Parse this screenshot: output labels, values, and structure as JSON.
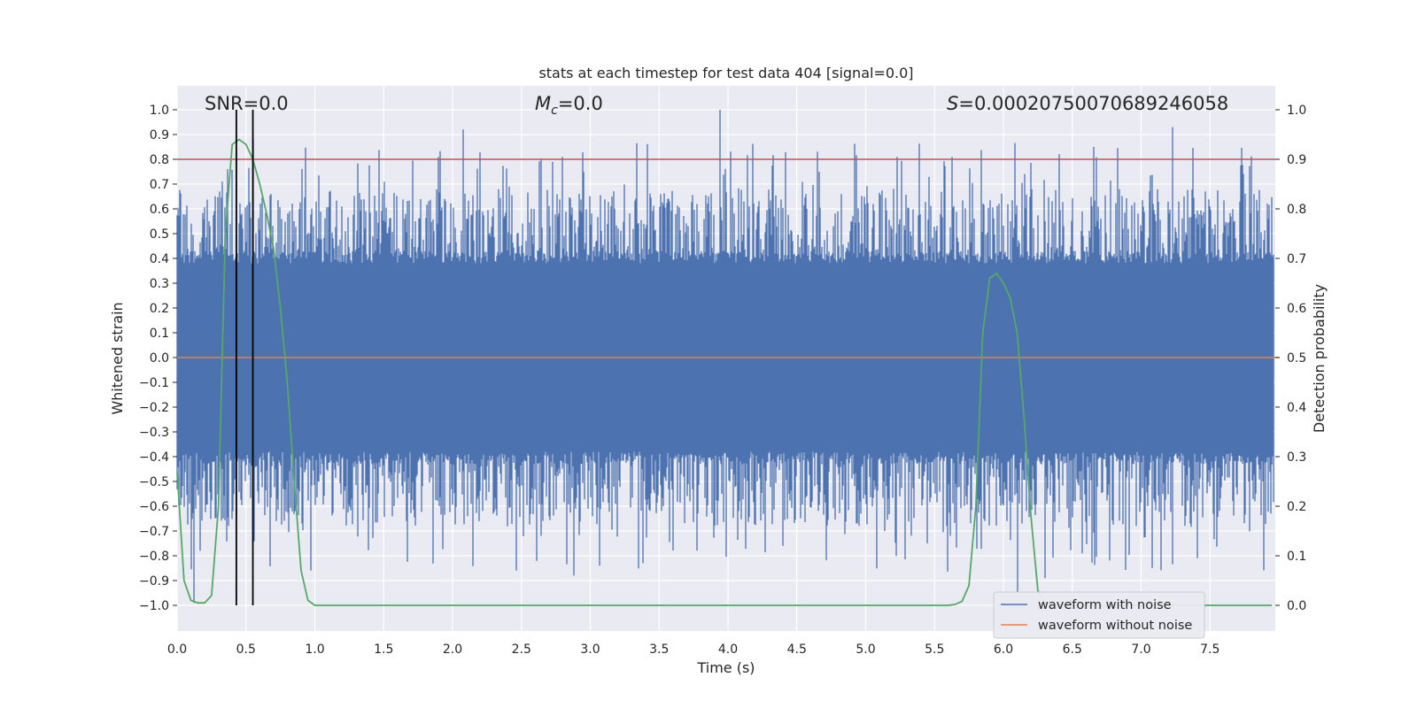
{
  "chart_data": {
    "type": "line",
    "title": "stats at each timestep for test data 404 [signal=0.0]",
    "xlabel": "Time (s)",
    "ylabel": "Whitened strain",
    "y2label": "Detection probability",
    "xlim": [
      0.0,
      8.0
    ],
    "ylim": [
      -1.1,
      1.1
    ],
    "y2lim": [
      -0.05,
      1.05
    ],
    "x_ticks": [
      "0.0",
      "0.5",
      "1.0",
      "1.5",
      "2.0",
      "2.5",
      "3.0",
      "3.5",
      "4.0",
      "4.5",
      "5.0",
      "5.5",
      "6.0",
      "6.5",
      "7.0",
      "7.5"
    ],
    "y_ticks": [
      "1.0",
      "0.9",
      "0.8",
      "0.7",
      "0.6",
      "0.5",
      "0.4",
      "0.3",
      "0.2",
      "0.1",
      "0.0",
      "−0.1",
      "−0.2",
      "−0.3",
      "−0.4",
      "−0.5",
      "−0.6",
      "−0.7",
      "−0.8",
      "−0.9",
      "−1.0"
    ],
    "y2_ticks": [
      "1.0",
      "0.9",
      "0.8",
      "0.7",
      "0.6",
      "0.5",
      "0.4",
      "0.3",
      "0.2",
      "0.1",
      "0.0"
    ],
    "grid": true,
    "legend_position": "lower-right",
    "annotations": {
      "snr": "SNR=0.0",
      "mc": "=0.0",
      "mc_symbol": "M",
      "mc_sub": "c",
      "s": "=0.00020750070689246058",
      "s_symbol": "S"
    },
    "series": [
      {
        "name": "waveform with noise",
        "color": "#4c72b0",
        "style": "noise",
        "envelope": {
          "typical_abs": 0.4,
          "max_pos": 1.0,
          "min_neg": -0.99
        },
        "spikes": [
          {
            "x": 0.12,
            "y": -0.99
          },
          {
            "x": 0.17,
            "y": -0.78
          },
          {
            "x": 0.33,
            "y": 0.71
          },
          {
            "x": 0.55,
            "y": 0.88
          },
          {
            "x": 0.97,
            "y": -0.86
          },
          {
            "x": 1.9,
            "y": 0.81
          },
          {
            "x": 2.08,
            "y": 0.92
          },
          {
            "x": 2.46,
            "y": -0.86
          },
          {
            "x": 2.8,
            "y": 0.81
          },
          {
            "x": 2.88,
            "y": -0.88
          },
          {
            "x": 3.94,
            "y": 1.0
          },
          {
            "x": 4.4,
            "y": -0.76
          },
          {
            "x": 5.63,
            "y": 0.81
          },
          {
            "x": 6.1,
            "y": -0.95
          },
          {
            "x": 6.3,
            "y": -0.89
          },
          {
            "x": 7.23,
            "y": 0.93
          },
          {
            "x": 7.97,
            "y": 0.73
          }
        ]
      },
      {
        "name": "waveform without noise",
        "color": "#dd8452",
        "x": [
          0.0,
          8.0
        ],
        "y": [
          0.0,
          0.0
        ]
      },
      {
        "name": "",
        "color": "#55a868",
        "axis": "right",
        "x": [
          0.0,
          0.05,
          0.1,
          0.15,
          0.2,
          0.25,
          0.3,
          0.35,
          0.4,
          0.45,
          0.5,
          0.55,
          0.6,
          0.65,
          0.7,
          0.75,
          0.8,
          0.85,
          0.9,
          0.95,
          1.0,
          1.05,
          1.1,
          5.5,
          5.6,
          5.65,
          5.7,
          5.75,
          5.8,
          5.85,
          5.9,
          5.95,
          6.0,
          6.05,
          6.1,
          6.15,
          6.2,
          6.25,
          6.3,
          6.35,
          6.4,
          6.45,
          6.5,
          7.95
        ],
        "y": [
          0.27,
          0.05,
          0.01,
          0.005,
          0.005,
          0.02,
          0.2,
          0.75,
          0.93,
          0.94,
          0.93,
          0.9,
          0.85,
          0.79,
          0.72,
          0.6,
          0.45,
          0.25,
          0.07,
          0.01,
          0.0,
          0.0,
          0.0,
          0.0,
          0.0,
          0.002,
          0.008,
          0.04,
          0.2,
          0.55,
          0.66,
          0.67,
          0.65,
          0.62,
          0.55,
          0.38,
          0.18,
          0.03,
          0.005,
          0.0,
          0.0,
          0.0,
          0.0,
          0.0
        ]
      }
    ],
    "hlines": [
      {
        "y": 0.8,
        "color": "#c44e52"
      }
    ],
    "vlines": [
      {
        "x": 0.43,
        "color": "#000000",
        "ymin": -1.0,
        "ymax": 1.0
      },
      {
        "x": 0.55,
        "color": "#000000",
        "ymin": -1.0,
        "ymax": 1.0
      }
    ]
  }
}
